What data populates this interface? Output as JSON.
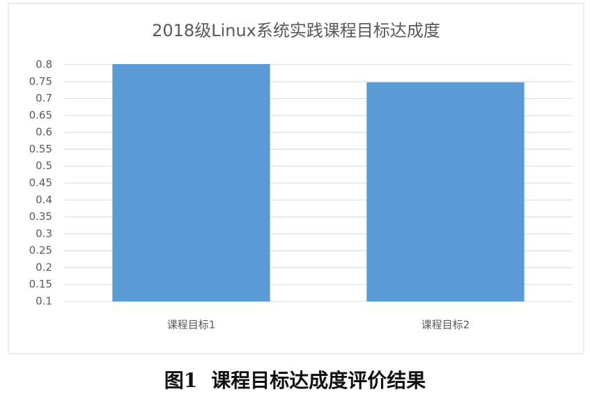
{
  "chart_data": {
    "type": "bar",
    "title": "2018级Linux系统实践课程目标达成度",
    "categories": [
      "课程目标1",
      "课程目标2"
    ],
    "values": [
      0.802,
      0.748
    ],
    "color": "#5b9bd5",
    "ylim": [
      0.1,
      0.8
    ],
    "yticks": [
      0.1,
      0.15,
      0.2,
      0.25,
      0.3,
      0.35,
      0.4,
      0.45,
      0.5,
      0.55,
      0.6,
      0.65,
      0.7,
      0.75,
      0.8
    ],
    "grid": true
  },
  "caption": {
    "label": "图1",
    "text": "课程目标达成度评价结果"
  }
}
